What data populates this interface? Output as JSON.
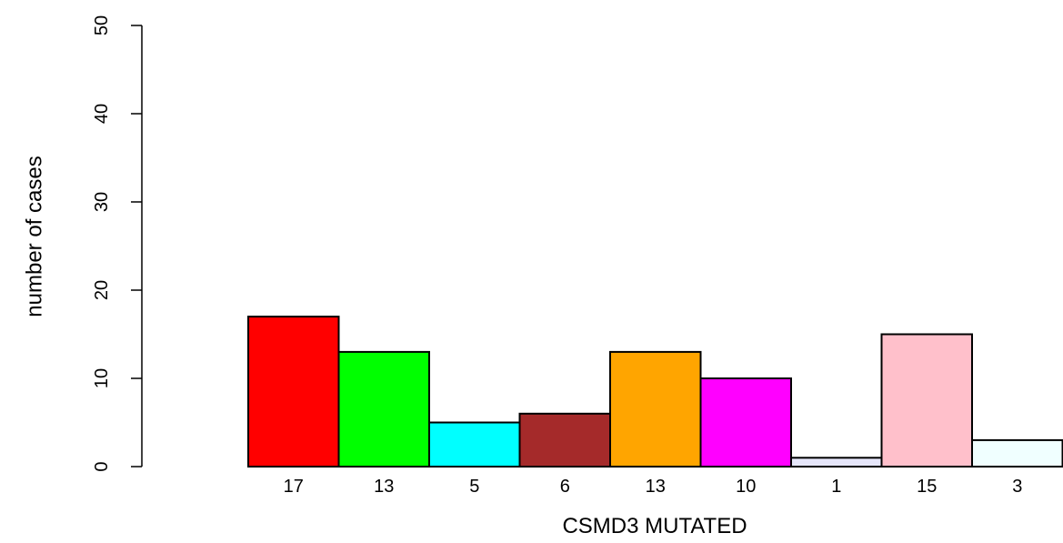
{
  "chart_data": {
    "type": "bar",
    "title": "",
    "xlabel": "CSMD3 MUTATED",
    "ylabel": "number of cases",
    "ylim": [
      0,
      50
    ],
    "yticks": [
      0,
      10,
      20,
      30,
      40,
      50
    ],
    "grid": false,
    "legend": "none",
    "bar_labels": [
      "17",
      "13",
      "5",
      "6",
      "13",
      "10",
      "1",
      "15",
      "3"
    ],
    "values": [
      17,
      13,
      5,
      6,
      13,
      10,
      1,
      15,
      3
    ],
    "colors": [
      "#ff0000",
      "#00ff00",
      "#00ffff",
      "#a52a2a",
      "#ffa500",
      "#ff00ff",
      "#e6e6fa",
      "#ffc0cb",
      "#f0ffff"
    ]
  }
}
